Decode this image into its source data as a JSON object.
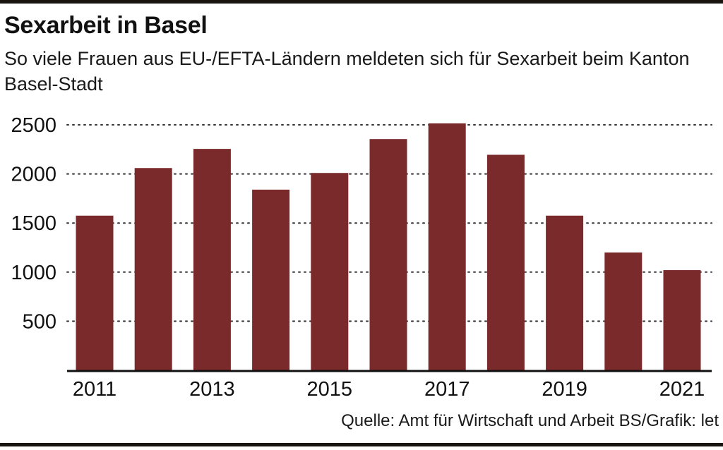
{
  "header": {
    "title": "Sexarbeit in Basel",
    "subtitle": "So viele Frauen aus EU-/EFTA-Ländern meldeten sich für Sexarbeit beim Kanton Basel-Stadt"
  },
  "footer": {
    "source": "Quelle: Amt für Wirtschaft und Arbeit BS/Grafik: let"
  },
  "colors": {
    "bar": "#7a2a2a",
    "grid": "#333333",
    "axis": "#111111"
  },
  "chart_data": {
    "type": "bar",
    "categories": [
      "2011",
      "2012",
      "2013",
      "2014",
      "2015",
      "2016",
      "2017",
      "2018",
      "2019",
      "2020",
      "2021"
    ],
    "values": [
      1575,
      2060,
      2255,
      1840,
      2010,
      2355,
      2515,
      2195,
      1575,
      1200,
      1020
    ],
    "x_tick_labels": [
      "2011",
      "2013",
      "2015",
      "2017",
      "2019",
      "2021"
    ],
    "y_ticks": [
      500,
      1000,
      1500,
      2000,
      2500
    ],
    "ylim": [
      0,
      2600
    ],
    "grid": true,
    "title": "Sexarbeit in Basel",
    "xlabel": "",
    "ylabel": ""
  }
}
